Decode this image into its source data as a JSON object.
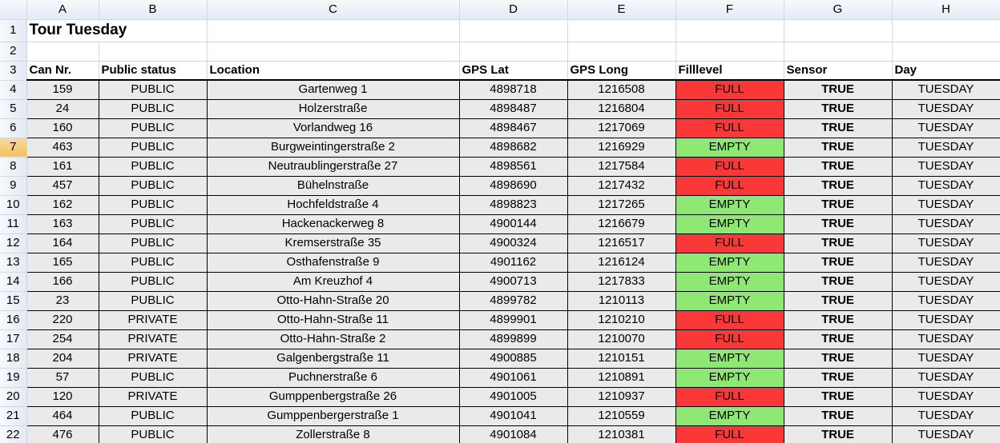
{
  "columns": [
    "A",
    "B",
    "C",
    "D",
    "E",
    "F",
    "G",
    "H"
  ],
  "active_row": 7,
  "title": "Tour Tuesday",
  "headers": {
    "can": "Can Nr.",
    "status": "Public status",
    "location": "Location",
    "lat": "GPS Lat",
    "long": "GPS Long",
    "fill": "Filllevel",
    "sensor": "Sensor",
    "day": "Day"
  },
  "colors": {
    "full": "#fa3838",
    "empty": "#8fe873",
    "data_bg": "#eaeaea"
  },
  "rows": [
    {
      "row": 4,
      "can": "159",
      "status": "PUBLIC",
      "location": "Gartenweg 1",
      "lat": "4898718",
      "long": "1216508",
      "fill": "FULL",
      "sensor": "TRUE",
      "day": "TUESDAY"
    },
    {
      "row": 5,
      "can": "24",
      "status": "PUBLIC",
      "location": "Holzerstraße",
      "lat": "4898487",
      "long": "1216804",
      "fill": "FULL",
      "sensor": "TRUE",
      "day": "TUESDAY"
    },
    {
      "row": 6,
      "can": "160",
      "status": "PUBLIC",
      "location": "Vorlandweg 16",
      "lat": "4898467",
      "long": "1217069",
      "fill": "FULL",
      "sensor": "TRUE",
      "day": "TUESDAY"
    },
    {
      "row": 7,
      "can": "463",
      "status": "PUBLIC",
      "location": "Burgweintingerstraße 2",
      "lat": "4898682",
      "long": "1216929",
      "fill": "EMPTY",
      "sensor": "TRUE",
      "day": "TUESDAY"
    },
    {
      "row": 8,
      "can": "161",
      "status": "PUBLIC",
      "location": "Neutraublingerstraße 27",
      "lat": "4898561",
      "long": "1217584",
      "fill": "FULL",
      "sensor": "TRUE",
      "day": "TUESDAY"
    },
    {
      "row": 9,
      "can": "457",
      "status": "PUBLIC",
      "location": "Bühelnstraße",
      "lat": "4898690",
      "long": "1217432",
      "fill": "FULL",
      "sensor": "TRUE",
      "day": "TUESDAY"
    },
    {
      "row": 10,
      "can": "162",
      "status": "PUBLIC",
      "location": "Hochfeldstraße 4",
      "lat": "4898823",
      "long": "1217265",
      "fill": "EMPTY",
      "sensor": "TRUE",
      "day": "TUESDAY"
    },
    {
      "row": 11,
      "can": "163",
      "status": "PUBLIC",
      "location": "Hackenackerweg 8",
      "lat": "4900144",
      "long": "1216679",
      "fill": "EMPTY",
      "sensor": "TRUE",
      "day": "TUESDAY"
    },
    {
      "row": 12,
      "can": "164",
      "status": "PUBLIC",
      "location": "Kremserstraße 35",
      "lat": "4900324",
      "long": "1216517",
      "fill": "FULL",
      "sensor": "TRUE",
      "day": "TUESDAY"
    },
    {
      "row": 13,
      "can": "165",
      "status": "PUBLIC",
      "location": "Osthafenstraße 9",
      "lat": "4901162",
      "long": "1216124",
      "fill": "EMPTY",
      "sensor": "TRUE",
      "day": "TUESDAY"
    },
    {
      "row": 14,
      "can": "166",
      "status": "PUBLIC",
      "location": "Am Kreuzhof 4",
      "lat": "4900713",
      "long": "1217833",
      "fill": "EMPTY",
      "sensor": "TRUE",
      "day": "TUESDAY"
    },
    {
      "row": 15,
      "can": "23",
      "status": "PUBLIC",
      "location": "Otto-Hahn-Straße 20",
      "lat": "4899782",
      "long": "1210113",
      "fill": "EMPTY",
      "sensor": "TRUE",
      "day": "TUESDAY"
    },
    {
      "row": 16,
      "can": "220",
      "status": "PRIVATE",
      "location": "Otto-Hahn-Straße 11",
      "lat": "4899901",
      "long": "1210210",
      "fill": "FULL",
      "sensor": "TRUE",
      "day": "TUESDAY"
    },
    {
      "row": 17,
      "can": "254",
      "status": "PRIVATE",
      "location": "Otto-Hahn-Straße 2",
      "lat": "4899899",
      "long": "1210070",
      "fill": "FULL",
      "sensor": "TRUE",
      "day": "TUESDAY"
    },
    {
      "row": 18,
      "can": "204",
      "status": "PRIVATE",
      "location": "Galgenbergstraße 11",
      "lat": "4900885",
      "long": "1210151",
      "fill": "EMPTY",
      "sensor": "TRUE",
      "day": "TUESDAY"
    },
    {
      "row": 19,
      "can": "57",
      "status": "PUBLIC",
      "location": "Puchnerstraße 6",
      "lat": "4901061",
      "long": "1210891",
      "fill": "EMPTY",
      "sensor": "TRUE",
      "day": "TUESDAY"
    },
    {
      "row": 20,
      "can": "120",
      "status": "PRIVATE",
      "location": "Gumppenbergstraße 26",
      "lat": "4901005",
      "long": "1210937",
      "fill": "FULL",
      "sensor": "TRUE",
      "day": "TUESDAY"
    },
    {
      "row": 21,
      "can": "464",
      "status": "PUBLIC",
      "location": "Gumppenbergerstraße 1",
      "lat": "4901041",
      "long": "1210559",
      "fill": "EMPTY",
      "sensor": "TRUE",
      "day": "TUESDAY"
    },
    {
      "row": 22,
      "can": "476",
      "status": "PUBLIC",
      "location": "Zollerstraße 8",
      "lat": "4901084",
      "long": "1210381",
      "fill": "FULL",
      "sensor": "TRUE",
      "day": "TUESDAY"
    }
  ]
}
